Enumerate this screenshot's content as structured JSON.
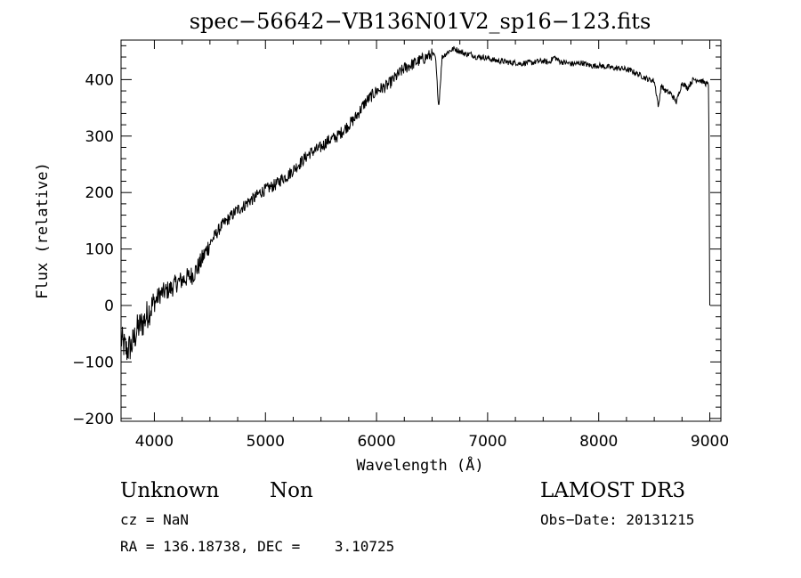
{
  "chart_data": {
    "type": "line",
    "title": "spec−56642−VB136N01V2_sp16−123.fits",
    "xlabel": "Wavelength (Å)",
    "ylabel": "Flux (relative)",
    "xlim": [
      3700,
      9100
    ],
    "ylim": [
      -205,
      470
    ],
    "xticks": [
      4000,
      5000,
      6000,
      7000,
      8000,
      9000
    ],
    "xtick_labels": [
      "4000",
      "5000",
      "6000",
      "7000",
      "8000",
      "9000"
    ],
    "yticks": [
      -200,
      -100,
      0,
      100,
      200,
      300,
      400
    ],
    "ytick_labels": [
      "−200",
      "−100",
      "0",
      "100",
      "200",
      "300",
      "400"
    ],
    "grid": false,
    "series": [
      {
        "name": "flux",
        "x": [
          3700,
          3750,
          3800,
          3850,
          3900,
          3950,
          4000,
          4050,
          4100,
          4150,
          4200,
          4250,
          4300,
          4350,
          4400,
          4450,
          4500,
          4550,
          4600,
          4650,
          4700,
          4750,
          4800,
          4850,
          4900,
          4950,
          5000,
          5050,
          5100,
          5150,
          5200,
          5250,
          5300,
          5350,
          5400,
          5450,
          5500,
          5550,
          5600,
          5650,
          5700,
          5750,
          5800,
          5850,
          5900,
          5950,
          6000,
          6050,
          6100,
          6150,
          6200,
          6250,
          6300,
          6350,
          6400,
          6450,
          6500,
          6530,
          6560,
          6590,
          6620,
          6650,
          6700,
          6750,
          6800,
          6850,
          6900,
          6950,
          7000,
          7050,
          7100,
          7150,
          7200,
          7250,
          7300,
          7350,
          7400,
          7450,
          7500,
          7550,
          7600,
          7650,
          7700,
          7750,
          7800,
          7850,
          7900,
          7950,
          8000,
          8050,
          8100,
          8150,
          8200,
          8250,
          8300,
          8350,
          8400,
          8450,
          8500,
          8540,
          8560,
          8600,
          8650,
          8700,
          8750,
          8800,
          8850,
          8900,
          8950,
          8990,
          9000
        ],
        "values": [
          -60,
          -80,
          -70,
          -40,
          -30,
          -10,
          5,
          20,
          25,
          30,
          40,
          45,
          50,
          55,
          70,
          90,
          110,
          125,
          140,
          150,
          160,
          170,
          175,
          185,
          190,
          200,
          205,
          210,
          215,
          225,
          230,
          240,
          250,
          260,
          270,
          275,
          280,
          290,
          295,
          300,
          310,
          320,
          330,
          345,
          360,
          370,
          380,
          385,
          390,
          400,
          410,
          420,
          425,
          430,
          435,
          440,
          445,
          440,
          350,
          440,
          445,
          450,
          455,
          450,
          445,
          445,
          440,
          440,
          438,
          435,
          433,
          432,
          430,
          430,
          428,
          430,
          430,
          432,
          433,
          430,
          440,
          432,
          430,
          428,
          428,
          430,
          426,
          424,
          425,
          423,
          422,
          420,
          420,
          418,
          415,
          410,
          405,
          400,
          398,
          350,
          390,
          380,
          375,
          360,
          395,
          385,
          400,
          400,
          395,
          390,
          0
        ]
      }
    ]
  },
  "footer": {
    "object_class": "Unknown",
    "subclass": "Non",
    "survey": "LAMOST DR3",
    "cz": "cz = NaN",
    "obs_date": "Obs−Date: 20131215",
    "coords": "RA = 136.18738, DEC =    3.10725"
  }
}
